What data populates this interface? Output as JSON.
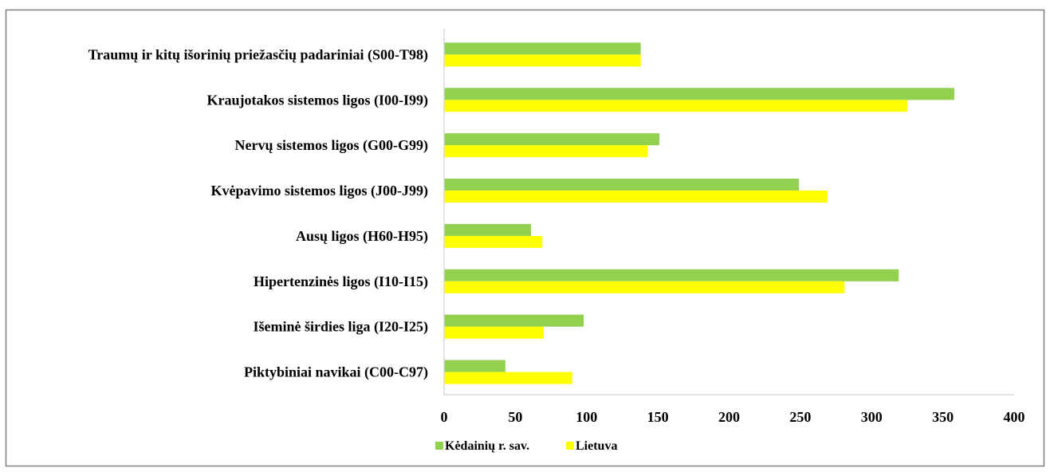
{
  "colors": {
    "series_1": "#92D050",
    "series_2": "#FFFF00",
    "axis": "#D9D9D9",
    "border": "#7F7F7F"
  },
  "chart_data": {
    "type": "bar",
    "orientation": "horizontal",
    "categories": [
      "Traumų ir kitų išorinių priežasčių padariniai (S00-T98)",
      "Kraujotakos sistemos ligos (I00-I99)",
      "Nervų sistemos ligos (G00-G99)",
      "Kvėpavimo sistemos ligos (J00-J99)",
      "Ausų ligos (H60-H95)",
      "Hipertenzinės ligos (I10-I15)",
      "Išeminė širdies liga (I20-I25)",
      "Piktybiniai navikai (C00-C97)"
    ],
    "series": [
      {
        "name": "Kėdainių r. sav.",
        "values": [
          138,
          358,
          151,
          249,
          61,
          319,
          98,
          43
        ]
      },
      {
        "name": "Lietuva",
        "values": [
          138,
          325,
          143,
          269,
          69,
          281,
          70,
          90
        ]
      }
    ],
    "xlim": [
      0,
      400
    ],
    "xticks": [
      "0",
      "50",
      "100",
      "150",
      "200",
      "250",
      "300",
      "350",
      "400"
    ],
    "grid": false,
    "legend_position": "bottom-left"
  }
}
